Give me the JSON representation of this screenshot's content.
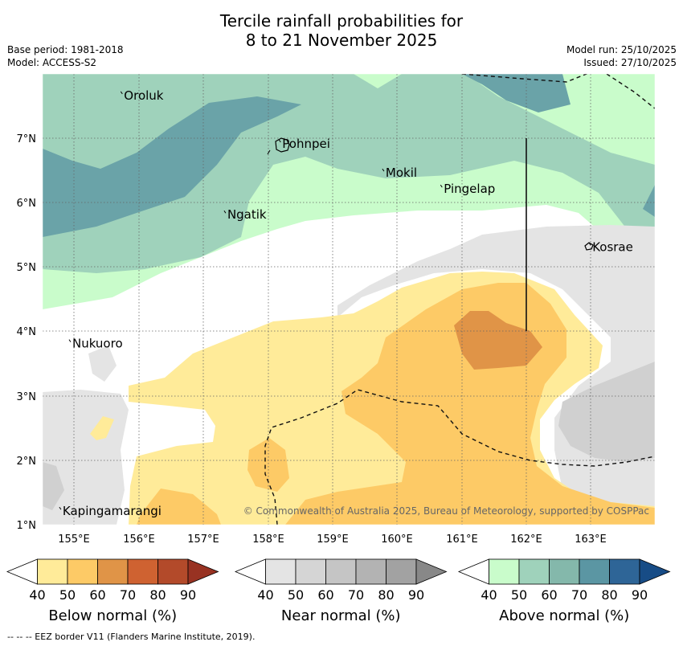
{
  "title": {
    "line1": "Tercile rainfall probabilities for",
    "line2": "8 to 21 November 2025"
  },
  "meta": {
    "base_period": "Base period: 1981-2018",
    "model": "Model: ACCESS-S2",
    "model_run": "Model run: 25/10/2025",
    "issued": "Issued: 27/10/2025"
  },
  "axes": {
    "lon_labels": [
      "155°E",
      "156°E",
      "157°E",
      "158°E",
      "159°E",
      "160°E",
      "161°E",
      "162°E",
      "163°E"
    ],
    "lat_labels": [
      "7°N",
      "6°N",
      "5°N",
      "4°N",
      "3°N",
      "2°N",
      "1°N"
    ]
  },
  "places": [
    {
      "name": "Oroluk",
      "lon": 155.75,
      "lat": 7.65
    },
    {
      "name": "Pohnpei",
      "lon": 158.2,
      "lat": 6.9
    },
    {
      "name": "Mokil",
      "lon": 159.8,
      "lat": 6.45
    },
    {
      "name": "Pingelap",
      "lon": 160.7,
      "lat": 6.2
    },
    {
      "name": "Ngatik",
      "lon": 157.35,
      "lat": 5.8
    },
    {
      "name": "Kosrae",
      "lon": 163.0,
      "lat": 5.3
    },
    {
      "name": "Nukuoro",
      "lon": 154.95,
      "lat": 3.8
    },
    {
      "name": "Kapingamarangi",
      "lon": 154.8,
      "lat": 1.2
    }
  ],
  "copyright": "© Commonwealth of Australia 2025, Bureau of Meteorology, supported by COSPPac",
  "legends": [
    {
      "title": "Below normal (%)",
      "ticks": [
        "40",
        "50",
        "60",
        "70",
        "80",
        "90"
      ],
      "colors": [
        "#ffffff",
        "#ffeb99",
        "#fdca66",
        "#e09447",
        "#cf6231",
        "#b34a2a",
        "#983222"
      ]
    },
    {
      "title": "Near normal (%)",
      "ticks": [
        "40",
        "50",
        "60",
        "70",
        "80",
        "90"
      ],
      "colors": [
        "#ffffff",
        "#e4e4e4",
        "#d5d5d5",
        "#c5c5c5",
        "#b3b3b3",
        "#a2a2a2",
        "#888888"
      ]
    },
    {
      "title": "Above normal (%)",
      "ticks": [
        "40",
        "50",
        "60",
        "70",
        "80",
        "90"
      ],
      "colors": [
        "#ffffff",
        "#c9fccb",
        "#9fd2bb",
        "#84b8ab",
        "#5b96a3",
        "#2e6597",
        "#174c86"
      ]
    }
  ],
  "footer": "-- -- -- EEZ border V11 (Flanders Marine Institute, 2019).",
  "colors": {
    "below_50": "#ffeb99",
    "below_60": "#fdca66",
    "below_70": "#e09447",
    "near_50": "#e4e4e4",
    "near_60": "#d5d5d5",
    "above_50": "#c9fccb",
    "above_60": "#9fd2bb",
    "above_70": "#84b8ab",
    "above_80": "#6aa3a8",
    "grid": "#666666"
  }
}
